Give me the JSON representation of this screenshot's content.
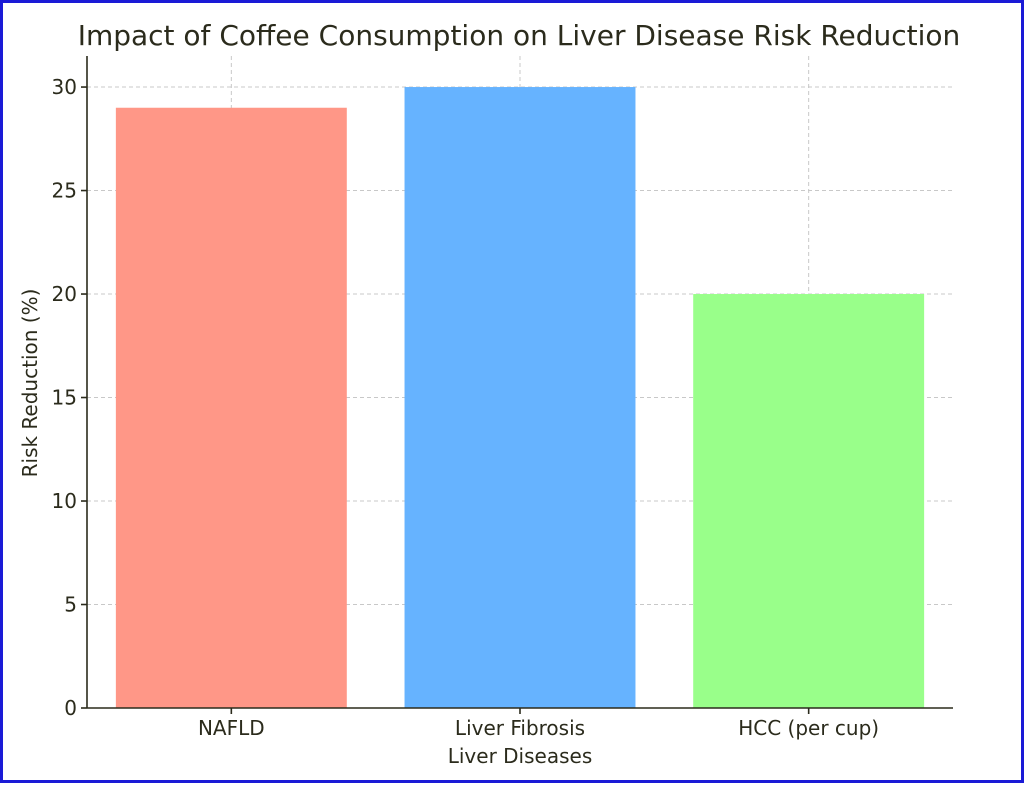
{
  "chart_data": {
    "type": "bar",
    "title": "Impact of Coffee Consumption on Liver Disease Risk Reduction",
    "xlabel": "Liver Diseases",
    "ylabel": "Risk Reduction (%)",
    "categories": [
      "NAFLD",
      "Liver Fibrosis",
      "HCC (per cup)"
    ],
    "values": [
      29,
      30,
      20
    ],
    "colors": [
      "#ff9787",
      "#66b3ff",
      "#99ff8a"
    ],
    "ylim": [
      0,
      31.5
    ],
    "yticks": [
      0,
      5,
      10,
      15,
      20,
      25,
      30
    ],
    "grid": true,
    "legend": "none"
  }
}
